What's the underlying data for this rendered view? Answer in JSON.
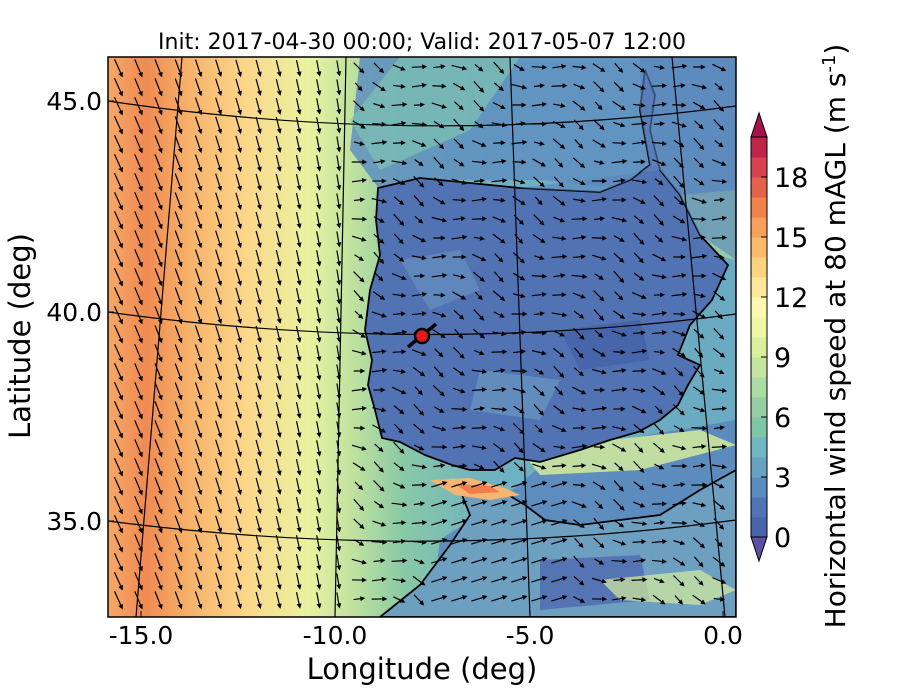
{
  "title": "Init: 2017-04-30 00:00; Valid: 2017-05-07 12:00",
  "x_axis": {
    "label": "Longitude (deg)",
    "ticks": [
      {
        "value": -15.0,
        "label": "-15.0"
      },
      {
        "value": -10.0,
        "label": "-10.0"
      },
      {
        "value": -5.0,
        "label": "-5.0"
      },
      {
        "value": 0.0,
        "label": "0.0"
      }
    ],
    "range": [
      -15.8,
      0.4
    ]
  },
  "y_axis": {
    "label": "Latitude (deg)",
    "ticks": [
      {
        "value": 45.0,
        "label": "45.0"
      },
      {
        "value": 40.0,
        "label": "40.0"
      },
      {
        "value": 35.0,
        "label": "35.0"
      }
    ],
    "range": [
      32.75,
      46.0
    ]
  },
  "colorbar": {
    "label": "Horizontal wind speed at 80 mAGL (m s",
    "label_exponent": "-1",
    "label_close": ")",
    "ticks": [
      "0",
      "3",
      "6",
      "9",
      "12",
      "15",
      "18"
    ],
    "tick_values": [
      0,
      3,
      6,
      9,
      12,
      15,
      18
    ],
    "range": [
      0,
      20
    ],
    "colors": [
      "#4a63ad",
      "#4f75b6",
      "#5a8cbf",
      "#66a3c3",
      "#70b6c3",
      "#7ec7a6",
      "#93cfa2",
      "#a9dba3",
      "#c4e59f",
      "#dcef9c",
      "#eef7a4",
      "#fbf8b0",
      "#fde89a",
      "#fdd382",
      "#fdbb6b",
      "#f9a05a",
      "#f1824c",
      "#e5624a",
      "#d6434d",
      "#c0244b",
      "#a8124a"
    ],
    "extend": "both"
  },
  "marker": {
    "lon": -7.6,
    "lat": 39.3,
    "fill": "#e3191c",
    "edge": "#000000"
  },
  "colors": {
    "land_low_wind": "#4f75b6",
    "ocean_high_wind": "#f1824c",
    "coastline": "#000000",
    "gridline": "#000000",
    "vector": "#000000"
  }
}
